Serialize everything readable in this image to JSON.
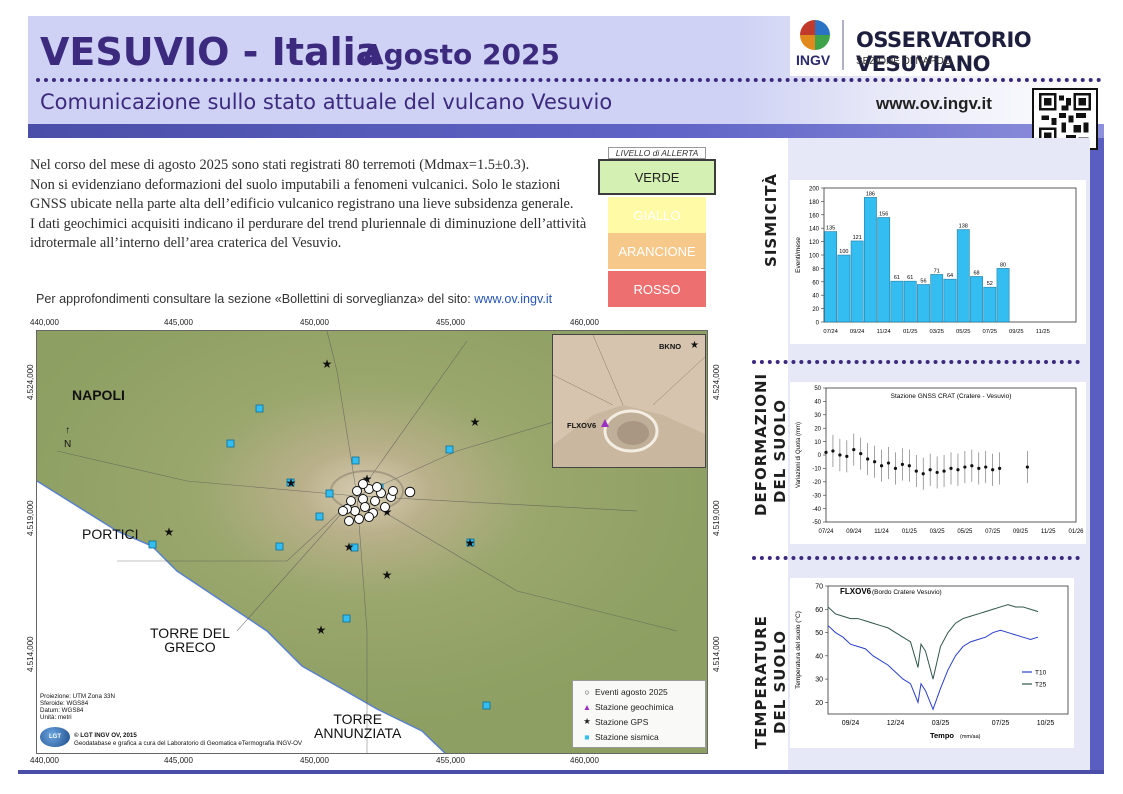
{
  "header": {
    "title": "VESUVIO  -  Italia",
    "date": "Agosto  2025",
    "subtitle": "Comunicazione sullo stato attuale del vulcano Vesuvio",
    "website": "www.ov.ingv.it",
    "logo_ingv": "INGV",
    "logo_name": "OSSERVATORIO VESUVIANO",
    "logo_section": "SEZIONE DI NAPOLI"
  },
  "text": {
    "paragraph1": "Nel corso del mese di agosto 2025 sono stati registrati 80 terremoti (Mdmax=1.5±0.3).",
    "paragraph2": "Non si evidenziano deformazioni del suolo imputabili a fenomeni vulcanici. Solo le stazioni GNSS ubicate nella parte alta dell’edificio vulcanico registrano una lieve subsidenza generale.",
    "paragraph3": "I dati geochimici acquisiti indicano il perdurare del trend pluriennale di diminuzione dell’attività idrotermale all’interno dell’area craterica del Vesuvio.",
    "link_prefix": "Per approfondimenti consultare la sezione «Bollettini di sorveglianza» del sito: ",
    "link_url": "www.ov.ingv.it"
  },
  "alert": {
    "title": "LIVELLO di ALLERTA",
    "levels": [
      "VERDE",
      "GIALLO",
      "ARANCIONE",
      "ROSSO"
    ],
    "active": "VERDE",
    "colors": {
      "VERDE": "#d4f0b2",
      "GIALLO": "#fefaa6",
      "ARANCIONE": "#f6c98a",
      "ROSSO": "#ee6f6f"
    }
  },
  "sections": {
    "seismicity": "SISMICITÀ",
    "deformation_1": "DEFORMAZIONI",
    "deformation_2": "DEL SUOLO",
    "temperature_1": "TEMPERATURE",
    "temperature_2": "DEL SUOLO"
  },
  "map": {
    "x_ticks": [
      "440,000",
      "445,000",
      "450,000",
      "455,000",
      "460,000"
    ],
    "y_ticks_left": [
      "4.524,000",
      "4.519,000",
      "4.514,000"
    ],
    "y_ticks_right": [
      "4.524,000",
      "4.519,000",
      "4.514,000"
    ],
    "places": {
      "napoli": "NAPOLI",
      "portici": "PORTICI",
      "torre_greco_1": "TORRE DEL",
      "torre_greco_2": "GRECO",
      "torre_annunziata_1": "TORRE",
      "torre_annunziata_2": "ANNUNZIATA"
    },
    "north": "N",
    "inset": {
      "bkno": "BKNO",
      "flxov6": "FLXOV6"
    },
    "legend": [
      "Eventi agosto 2025",
      "Stazione geochimica",
      "Stazione GPS",
      "Stazione sismica"
    ],
    "projection": [
      "Proiezione: UTM Zona 33N",
      "Sferoide: WGS84",
      "Datum: WGS84",
      "Unità: metri"
    ],
    "credit_logo": "LGT",
    "credit_1": "© LGT INGV OV, 2015",
    "credit_2": "Geodatabase e grafica a cura del Laboratorio di Geomatica eTermografia INGV-OV"
  },
  "chart_data": [
    {
      "type": "bar",
      "ylabel": "Eventi/mese",
      "ylim": [
        0,
        200
      ],
      "yticks": [
        0,
        20,
        40,
        60,
        80,
        100,
        120,
        140,
        160,
        180,
        200
      ],
      "x_tick_labels": [
        "07/24",
        "09/24",
        "11/24",
        "01/25",
        "03/25",
        "05/25",
        "07/25",
        "09/25",
        "11/25"
      ],
      "categories": [
        "07/24",
        "08/24",
        "09/24",
        "10/24",
        "11/24",
        "12/24",
        "01/25",
        "02/25",
        "03/25",
        "04/25",
        "05/25",
        "06/25",
        "07/25",
        "08/25"
      ],
      "values": [
        135,
        100,
        121,
        186,
        156,
        61,
        61,
        56,
        71,
        64,
        138,
        68,
        52,
        80
      ],
      "color": "#33bdf0"
    },
    {
      "type": "scatter",
      "title": "Stazione GNSS CRAT (Cratere - Vesuvio)",
      "ylabel": "Variazioni di Quota (mm)",
      "ylim": [
        -50,
        50
      ],
      "yticks": [
        -50,
        -40,
        -30,
        -20,
        -10,
        0,
        10,
        20,
        30,
        40,
        50
      ],
      "x_tick_labels": [
        "07/24",
        "09/24",
        "11/24",
        "01/25",
        "03/25",
        "05/25",
        "07/25",
        "09/25",
        "11/25",
        "01/26"
      ],
      "x_months": [
        0,
        0.5,
        1,
        1.5,
        2,
        2.5,
        3,
        3.5,
        4,
        4.5,
        5,
        5.5,
        6,
        6.5,
        7,
        7.5,
        8,
        8.5,
        9,
        9.5,
        10,
        10.5,
        11,
        11.5,
        12,
        12.5,
        14.5
      ],
      "values": [
        2,
        3,
        0,
        -1,
        4,
        1,
        -3,
        -5,
        -8,
        -6,
        -10,
        -7,
        -8,
        -12,
        -14,
        -11,
        -13,
        -12,
        -10,
        -11,
        -9,
        -8,
        -10,
        -9,
        -11,
        -10,
        -9
      ]
    },
    {
      "type": "line",
      "title": "FLXOV6",
      "subtitle": "(Bordo Cratere Vesuvio)",
      "xlabel": "Tempo",
      "xlabel_unit": "(mm/aa)",
      "ylabel": "Temperatura del suolo (°C)",
      "ylim": [
        15,
        70
      ],
      "yticks": [
        20,
        30,
        40,
        50,
        60,
        70
      ],
      "x_tick_labels": [
        "09/24",
        "12/24",
        "03/25",
        "07/25",
        "10/25"
      ],
      "series": [
        {
          "name": "T10",
          "color": "#2b3fc8",
          "x": [
            0,
            0.5,
            1,
            1.5,
            2,
            2.5,
            3,
            3.5,
            4,
            4.5,
            5,
            5.5,
            6,
            6.2,
            6.5,
            7,
            7.5,
            8,
            8.5,
            9,
            9.5,
            10,
            10.5,
            11,
            11.5,
            12,
            12.5,
            13,
            13.5,
            14
          ],
          "values": [
            53,
            50,
            48,
            45,
            44,
            43,
            40,
            38,
            36,
            33,
            30,
            28,
            20,
            28,
            25,
            17,
            26,
            34,
            40,
            44,
            46,
            47,
            48,
            50,
            51,
            50,
            49,
            48,
            47,
            48
          ]
        },
        {
          "name": "T25",
          "color": "#2f5648",
          "x": [
            0,
            0.5,
            1,
            1.5,
            2,
            2.5,
            3,
            3.5,
            4,
            4.5,
            5,
            5.5,
            6,
            6.2,
            6.5,
            7,
            7.5,
            8,
            8.5,
            9,
            9.5,
            10,
            10.5,
            11,
            11.5,
            12,
            12.5,
            13,
            13.5,
            14
          ],
          "values": [
            61,
            58,
            57,
            56,
            56,
            55,
            54,
            53,
            52,
            50,
            48,
            46,
            35,
            45,
            42,
            30,
            44,
            50,
            54,
            56,
            57,
            58,
            59,
            60,
            61,
            62,
            61,
            61,
            60,
            59
          ]
        }
      ]
    }
  ]
}
